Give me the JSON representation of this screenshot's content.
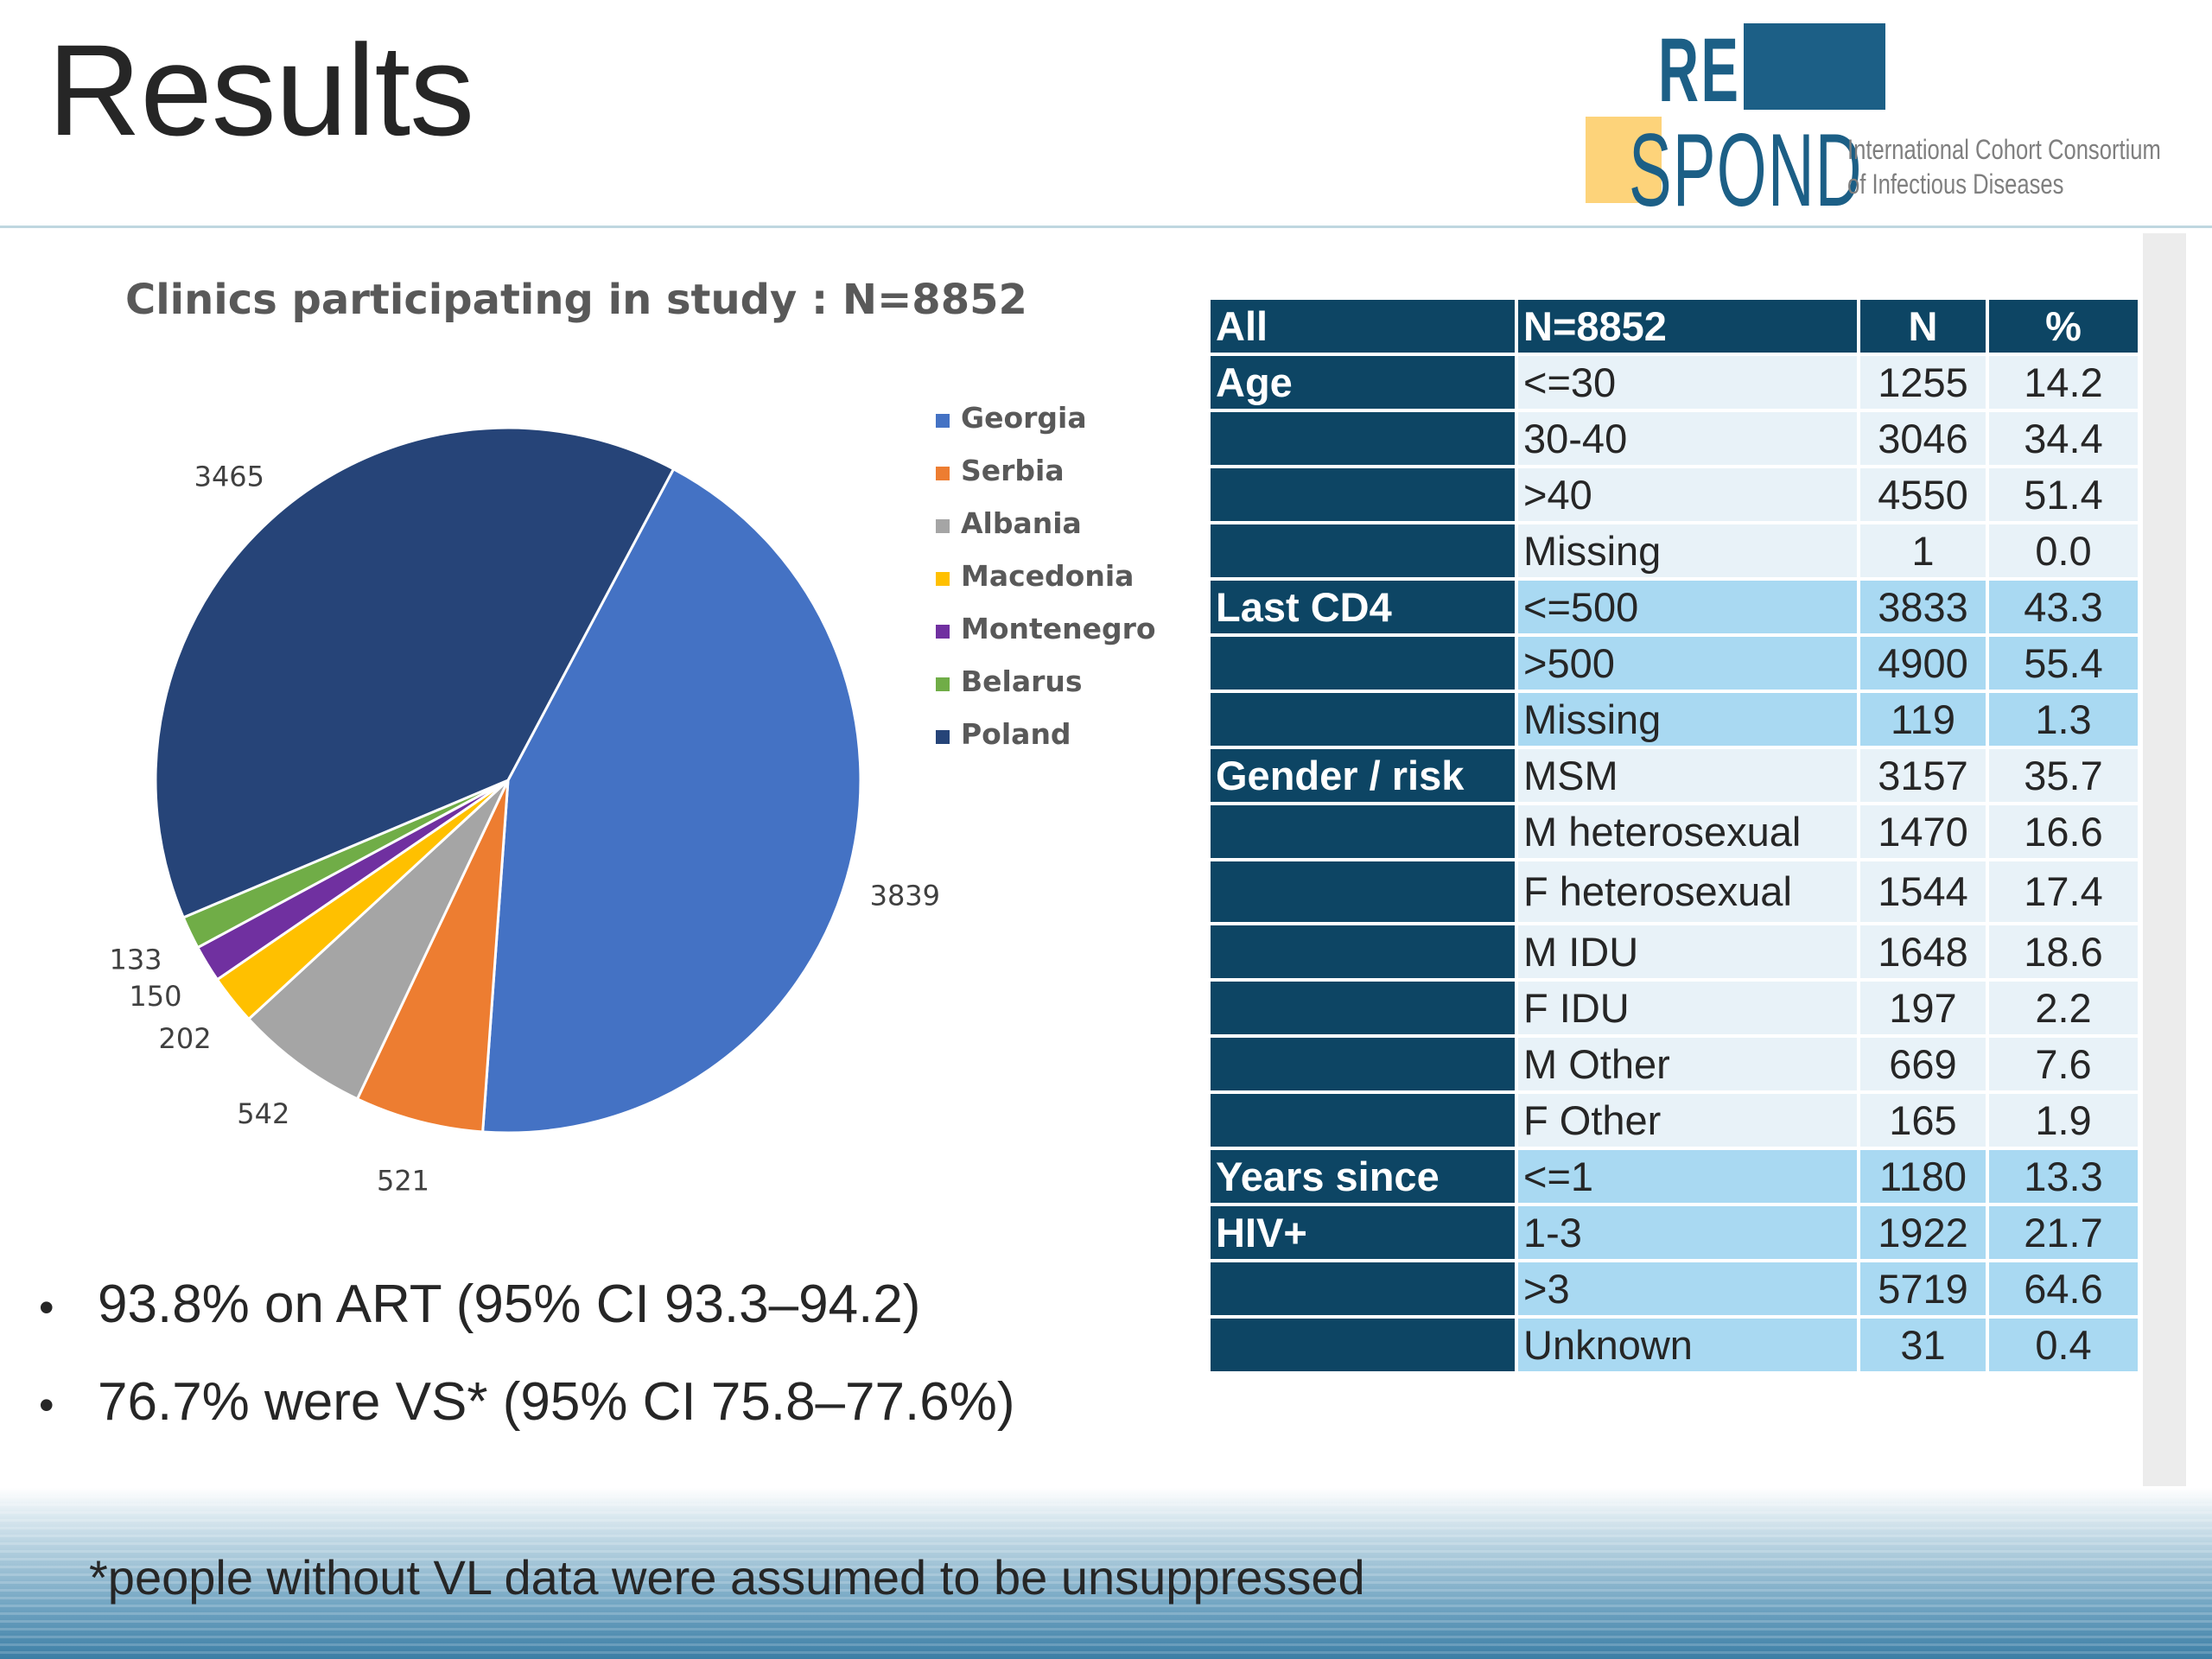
{
  "slide": {
    "title": "Results"
  },
  "logo": {
    "re": "RE",
    "spond": "SPOND",
    "line1": "International Cohort Consortium",
    "line2": "of Infectious Diseases"
  },
  "chart_data": {
    "type": "pie",
    "title": "Clinics participating in study : N=8852",
    "categories": [
      "Georgia",
      "Serbia",
      "Albania",
      "Macedonia",
      "Montenegro",
      "Belarus",
      "Poland"
    ],
    "values": [
      3839,
      521,
      542,
      202,
      150,
      133,
      3465
    ],
    "colors": [
      "#4472c4",
      "#ed7d31",
      "#a5a5a5",
      "#ffc000",
      "#7030a0",
      "#70ad47",
      "#264478"
    ],
    "legend_position": "right",
    "data_labels": true
  },
  "table": {
    "header": [
      "All",
      "N=8852",
      "N",
      "%"
    ],
    "rows": [
      [
        "Age",
        "<=30",
        "1255",
        "14.2"
      ],
      [
        "",
        "30-40",
        "3046",
        "34.4"
      ],
      [
        "",
        ">40",
        "4550",
        "51.4"
      ],
      [
        "",
        "Missing",
        "1",
        "0.0"
      ],
      [
        "Last CD4",
        "<=500",
        "3833",
        "43.3"
      ],
      [
        "",
        ">500",
        "4900",
        "55.4"
      ],
      [
        "",
        "Missing",
        "119",
        "1.3"
      ],
      [
        "Gender / risk",
        "MSM",
        "3157",
        "35.7"
      ],
      [
        "",
        "M heterosexual",
        "1470",
        "16.6"
      ],
      [
        "",
        "F heterosexual",
        "1544",
        "17.4"
      ],
      [
        "",
        "M IDU",
        "1648",
        "18.6"
      ],
      [
        "",
        "F IDU",
        "197",
        "2.2"
      ],
      [
        "",
        "M Other",
        "669",
        "7.6"
      ],
      [
        "",
        "F Other",
        "165",
        "1.9"
      ],
      [
        "Years since",
        "<=1",
        "1180",
        "13.3"
      ],
      [
        "HIV+",
        "1-3",
        "1922",
        "21.7"
      ],
      [
        "",
        ">3",
        "5719",
        "64.6"
      ],
      [
        "",
        "Unknown",
        "31",
        "0.4"
      ]
    ]
  },
  "bullets": {
    "marker": "•",
    "items": [
      "93.8% on ART (95% CI 93.3–94.2)",
      "76.7% were VS* (95% CI 75.8–77.6%)"
    ]
  },
  "footnote": "*people without VL data were assumed to be unsuppressed"
}
